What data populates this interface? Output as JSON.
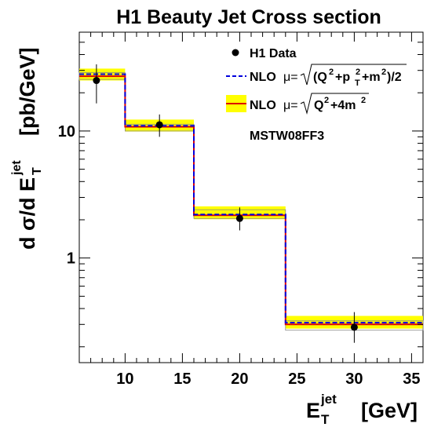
{
  "chart_data": {
    "type": "line",
    "title": "H1 Beauty Jet Cross section",
    "ylabel_parts": {
      "lead": "d σ/d E",
      "sup": "jet",
      "sub": "T",
      "unit": "[pb/GeV]"
    },
    "xlabel_parts": {
      "main": "E",
      "sup": "jet",
      "sub": "T",
      "unit": "[GeV]"
    },
    "xlim": [
      6,
      36
    ],
    "ylim": [
      0.15,
      60
    ],
    "yscale": "log",
    "xticks": [
      "10",
      "15",
      "20",
      "25",
      "30",
      "35"
    ],
    "xtick_values": [
      10,
      15,
      20,
      25,
      30,
      35
    ],
    "yticks": [
      "1",
      "10"
    ],
    "ytick_values": [
      1,
      10
    ],
    "bin_edges": [
      6,
      10,
      16,
      24,
      36
    ],
    "series": [
      {
        "name": "H1 Data",
        "style": "points",
        "color": "#000000",
        "x": [
          7.5,
          13,
          20,
          30
        ],
        "y": [
          25,
          11.2,
          2.05,
          0.285
        ],
        "yerr_low": [
          16.5,
          9.0,
          1.65,
          0.215
        ],
        "yerr_high": [
          33.5,
          13.5,
          2.5,
          0.375
        ]
      },
      {
        "name": "NLO μ=√(Q²+p_T²+m²)/2",
        "style": "dashed-step",
        "color": "#0000dd",
        "values": [
          28.0,
          11.0,
          2.2,
          0.31
        ]
      },
      {
        "name": "NLO μ=√(Q²+4m²)",
        "style": "solid-step",
        "color": "#dd0000",
        "values": [
          27.0,
          10.8,
          2.17,
          0.3
        ],
        "band_low": [
          25.0,
          9.9,
          2.02,
          0.278
        ],
        "band_high": [
          31.0,
          12.3,
          2.55,
          0.35
        ],
        "band_color": "#ffff00",
        "outer_low": [
          25.5,
          10.0,
          2.05,
          0.27
        ],
        "outer_high": [
          28.8,
          11.3,
          2.4,
          0.32
        ]
      }
    ],
    "legend_parts": {
      "data": "H1 Data",
      "nlo": "NLO",
      "mu": "μ=",
      "s1_radicand": [
        "(Q",
        "2",
        "+p",
        "2",
        "T",
        "+m",
        "2",
        ")/2"
      ],
      "s2_radicand": [
        "Q",
        "2",
        "+4m",
        "2"
      ]
    },
    "annotation": "MSTW08FF3",
    "legend_position": "top-right",
    "grid": false
  }
}
